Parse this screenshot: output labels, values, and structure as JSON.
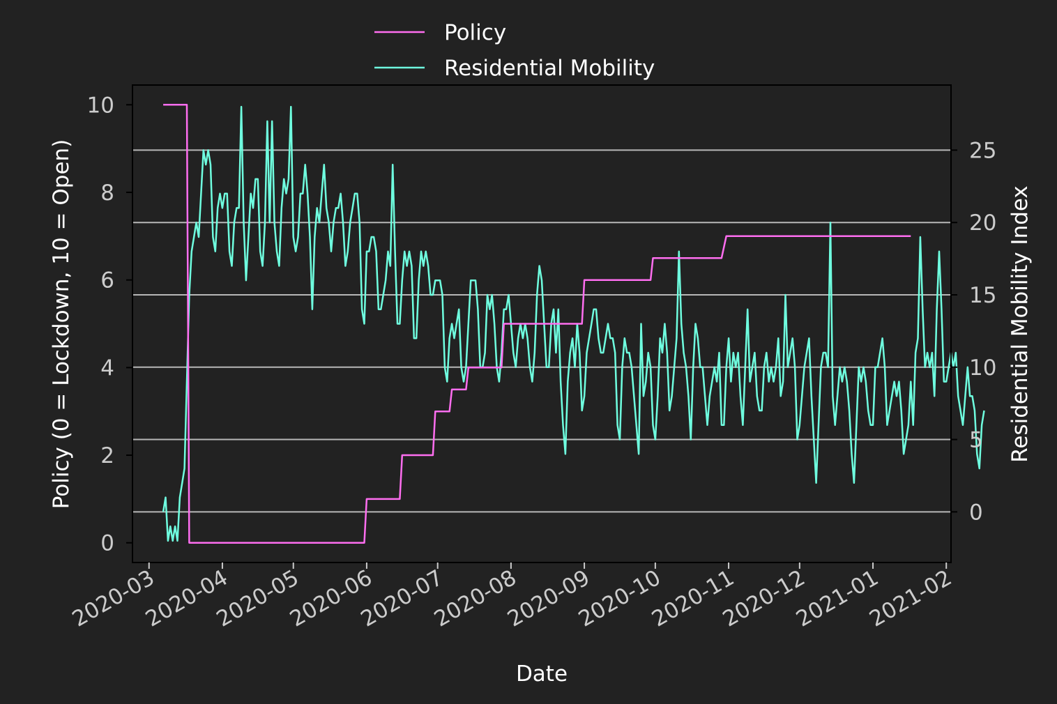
{
  "chart_data": {
    "type": "line",
    "xlabel": "Date",
    "ylabel_left": "Policy (0 = Lockdown, 10 = Open)",
    "ylabel_right": "Residential Mobility Index",
    "x_range": [
      "2020-02-23",
      "2021-02-03"
    ],
    "x_ticks": [
      "2020-03",
      "2020-04",
      "2020-05",
      "2020-06",
      "2020-07",
      "2020-08",
      "2020-09",
      "2020-10",
      "2020-11",
      "2020-12",
      "2021-01",
      "2021-02"
    ],
    "y_left_range": [
      -0.45,
      10.45
    ],
    "y_left_ticks": [
      0,
      2,
      4,
      6,
      8,
      10
    ],
    "y_right_range": [
      -3.5,
      29.5
    ],
    "y_right_ticks": [
      0,
      5,
      10,
      15,
      20,
      25
    ],
    "grid": "right-axis horizontal",
    "legend": "above-center",
    "colors": {
      "background": "#222222",
      "policy": "#ff6ef0",
      "mobility": "#6fffe0",
      "grid": "#b8b8b8"
    },
    "series": [
      {
        "name": "Policy",
        "axis": "left",
        "points": [
          [
            "2020-03-07",
            10
          ],
          [
            "2020-03-17",
            10
          ],
          [
            "2020-03-18",
            0
          ],
          [
            "2020-05-31",
            0
          ],
          [
            "2020-06-01",
            1
          ],
          [
            "2020-06-15",
            1
          ],
          [
            "2020-06-16",
            2
          ],
          [
            "2020-06-29",
            2
          ],
          [
            "2020-06-30",
            3
          ],
          [
            "2020-07-06",
            3
          ],
          [
            "2020-07-07",
            3.5
          ],
          [
            "2020-07-13",
            3.5
          ],
          [
            "2020-07-14",
            4
          ],
          [
            "2020-07-28",
            4
          ],
          [
            "2020-07-29",
            5
          ],
          [
            "2020-08-31",
            5
          ],
          [
            "2020-09-01",
            6
          ],
          [
            "2020-09-29",
            6
          ],
          [
            "2020-09-30",
            6.5
          ],
          [
            "2020-10-29",
            6.5
          ],
          [
            "2020-10-31",
            7
          ],
          [
            "2021-01-17",
            7
          ]
        ]
      },
      {
        "name": "Residential Mobility",
        "axis": "right",
        "start": "2020-03-07",
        "values": [
          0,
          1,
          -2,
          -1,
          -2,
          -1,
          -2,
          1,
          2,
          3,
          9,
          15,
          18,
          19,
          20,
          19,
          22,
          25,
          24,
          25,
          24,
          19,
          18,
          21,
          22,
          21,
          22,
          22,
          18,
          17,
          20,
          21,
          21,
          28,
          20,
          16,
          19,
          22,
          21,
          23,
          23,
          18,
          17,
          20,
          27,
          20,
          27,
          20,
          18,
          17,
          21,
          23,
          22,
          23,
          28,
          19,
          18,
          19,
          22,
          22,
          24,
          22,
          19,
          14,
          19,
          21,
          20,
          22,
          24,
          21,
          20,
          18,
          20,
          21,
          21,
          22,
          20,
          17,
          18,
          20,
          21,
          22,
          22,
          20,
          14,
          13,
          18,
          18,
          19,
          19,
          18,
          14,
          14,
          15,
          16,
          18,
          17,
          24,
          18,
          13,
          13,
          16,
          18,
          17,
          18,
          17,
          12,
          12,
          16,
          18,
          17,
          18,
          17,
          15,
          15,
          16,
          16,
          16,
          15,
          10,
          9,
          12,
          13,
          12,
          13,
          14,
          10,
          9,
          10,
          13,
          16,
          16,
          16,
          14,
          10,
          10,
          11,
          15,
          14,
          15,
          13,
          10,
          9,
          11,
          14,
          14,
          15,
          13,
          11,
          10,
          12,
          13,
          12,
          13,
          12,
          10,
          9,
          11,
          15,
          17,
          16,
          13,
          10,
          10,
          13,
          14,
          11,
          14,
          9,
          6,
          4,
          9,
          11,
          12,
          10,
          13,
          11,
          7,
          8,
          11,
          12,
          13,
          14,
          14,
          12,
          11,
          11,
          12,
          13,
          12,
          12,
          11,
          6,
          5,
          10,
          12,
          11,
          11,
          10,
          8,
          6,
          4,
          13,
          8,
          9,
          11,
          10,
          6,
          5,
          8,
          12,
          11,
          13,
          11,
          7,
          8,
          10,
          12,
          18,
          13,
          11,
          10,
          8,
          5,
          10,
          13,
          12,
          10,
          10,
          8,
          6,
          8,
          9,
          10,
          9,
          11,
          6,
          6,
          10,
          12,
          9,
          11,
          10,
          11,
          8,
          6,
          10,
          14,
          9,
          10,
          11,
          8,
          7,
          7,
          10,
          11,
          9,
          10,
          9,
          10,
          12,
          8,
          9,
          15,
          10,
          11,
          12,
          10,
          5,
          6,
          8,
          10,
          11,
          12,
          8,
          5,
          2,
          6,
          10,
          11,
          11,
          10,
          20,
          8,
          6,
          8,
          10,
          9,
          10,
          9,
          7,
          4,
          2,
          6,
          10,
          9,
          10,
          9,
          7,
          6,
          6,
          10,
          10,
          11,
          12,
          10,
          6,
          7,
          8,
          9,
          8,
          9,
          7,
          4,
          5,
          6,
          9,
          6,
          11,
          12,
          19,
          14,
          10,
          11,
          10,
          11,
          8,
          14,
          18,
          14,
          9,
          9,
          10,
          11,
          10,
          11,
          8,
          7,
          6,
          8,
          10,
          8,
          8,
          7,
          4,
          3,
          6,
          7
        ]
      }
    ]
  }
}
